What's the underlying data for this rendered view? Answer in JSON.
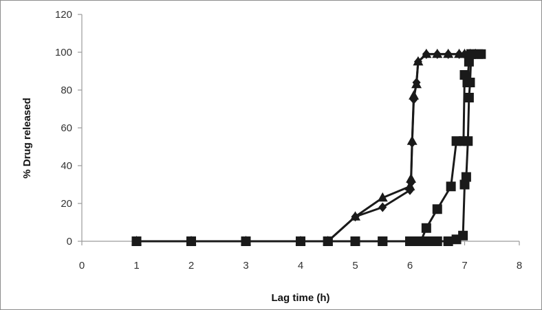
{
  "chart_data": {
    "type": "line",
    "title": "",
    "xlabel": "Lag time (h)",
    "ylabel": "% Drug released",
    "xlim": [
      0,
      8
    ],
    "ylim": [
      0,
      120
    ],
    "xticks": [
      "0",
      "1",
      "2",
      "3",
      "4",
      "5",
      "6",
      "7",
      "8"
    ],
    "yticks": [
      "0",
      "20",
      "40",
      "60",
      "80",
      "100",
      "120"
    ],
    "grid": false,
    "legend": "none",
    "line_color": "#1a1a1a",
    "series": [
      {
        "marker": "diamond",
        "points": [
          [
            1,
            0
          ],
          [
            2,
            0
          ],
          [
            3,
            0
          ],
          [
            4,
            0
          ],
          [
            4.5,
            0
          ],
          [
            5,
            13
          ],
          [
            5.5,
            18
          ],
          [
            6,
            27
          ],
          [
            6.02,
            31
          ],
          [
            6.04,
            52
          ],
          [
            6.07,
            75
          ],
          [
            6.12,
            84
          ],
          [
            6.15,
            95
          ],
          [
            6.3,
            99
          ],
          [
            6.5,
            99
          ],
          [
            6.7,
            99
          ],
          [
            6.9,
            99
          ],
          [
            7.0,
            99
          ],
          [
            7.1,
            99
          ],
          [
            7.2,
            99
          ]
        ]
      },
      {
        "marker": "triangle",
        "points": [
          [
            1,
            0
          ],
          [
            2,
            0
          ],
          [
            3,
            0
          ],
          [
            4,
            0
          ],
          [
            4.5,
            0
          ],
          [
            5,
            13
          ],
          [
            5.5,
            23
          ],
          [
            6,
            29
          ],
          [
            6.02,
            33
          ],
          [
            6.04,
            53
          ],
          [
            6.07,
            77
          ],
          [
            6.12,
            83
          ],
          [
            6.15,
            95
          ],
          [
            6.3,
            99
          ],
          [
            6.5,
            99
          ],
          [
            6.7,
            99
          ],
          [
            6.9,
            99
          ],
          [
            7.0,
            99
          ],
          [
            7.1,
            99
          ],
          [
            7.2,
            99
          ]
        ]
      },
      {
        "marker": "square",
        "points": [
          [
            1,
            0
          ],
          [
            2,
            0
          ],
          [
            3,
            0
          ],
          [
            4,
            0
          ],
          [
            4.5,
            0
          ],
          [
            5,
            0
          ],
          [
            5.5,
            0
          ],
          [
            6,
            0
          ],
          [
            6.1,
            0
          ],
          [
            6.2,
            0
          ],
          [
            6.3,
            7
          ],
          [
            6.5,
            17
          ],
          [
            6.75,
            29
          ],
          [
            6.85,
            53
          ],
          [
            6.98,
            53
          ],
          [
            7.0,
            88
          ],
          [
            7.05,
            84
          ],
          [
            7.08,
            95
          ],
          [
            7.12,
            99
          ],
          [
            7.3,
            99
          ]
        ]
      },
      {
        "marker": "square",
        "points": [
          [
            1,
            0
          ],
          [
            2,
            0
          ],
          [
            3,
            0
          ],
          [
            4,
            0
          ],
          [
            4.5,
            0
          ],
          [
            5,
            0
          ],
          [
            5.5,
            0
          ],
          [
            6,
            0
          ],
          [
            6.2,
            0
          ],
          [
            6.3,
            0
          ],
          [
            6.4,
            0
          ],
          [
            6.5,
            0
          ],
          [
            6.7,
            0
          ],
          [
            6.85,
            1
          ],
          [
            6.97,
            3
          ],
          [
            7.0,
            30
          ],
          [
            7.03,
            34
          ],
          [
            7.06,
            53
          ],
          [
            7.08,
            76
          ],
          [
            7.1,
            84
          ],
          [
            7.12,
            99
          ],
          [
            7.25,
            99
          ]
        ]
      }
    ]
  }
}
